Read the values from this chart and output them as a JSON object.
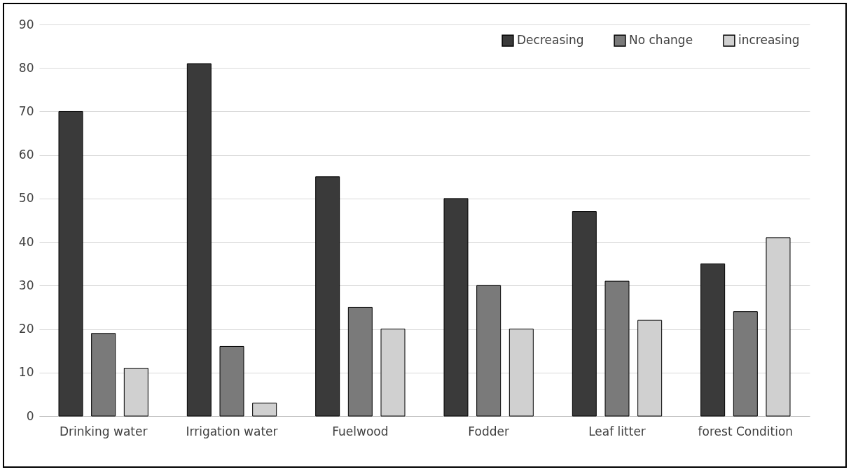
{
  "chart_data": {
    "type": "bar",
    "categories": [
      "Drinking water",
      "Irrigation water",
      "Fuelwood",
      "Fodder",
      "Leaf litter",
      "forest Condition"
    ],
    "series": [
      {
        "name": "Decreasing",
        "color": "#3a3a3a",
        "values": [
          70,
          81,
          55,
          50,
          47,
          35
        ]
      },
      {
        "name": "No change",
        "color": "#7a7a7a",
        "values": [
          19,
          16,
          25,
          30,
          31,
          24
        ]
      },
      {
        "name": "increasing",
        "color": "#d0d0d0",
        "values": [
          11,
          3,
          20,
          20,
          22,
          41
        ]
      }
    ],
    "ylim": [
      0,
      90
    ],
    "yticks": [
      0,
      10,
      20,
      30,
      40,
      50,
      60,
      70,
      80,
      90
    ],
    "grid": "y",
    "legend": "top right"
  }
}
